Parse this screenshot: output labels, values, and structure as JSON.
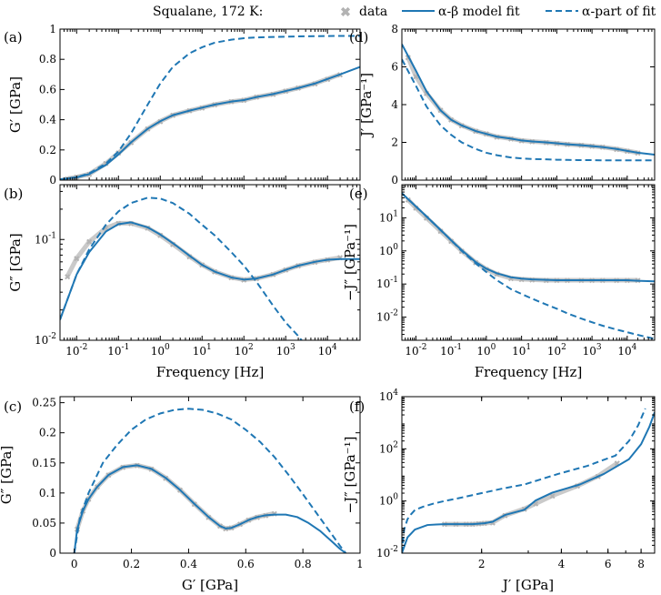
{
  "legend": {
    "title": "Squalane, 172 K:",
    "data_label": "data",
    "fit_label": "α-β model fit",
    "alpha_label": "α-part of fit"
  },
  "colors": {
    "fit": "#1f77b4",
    "data": "#b3b3b3",
    "axis": "#000000"
  },
  "chart_data": [
    {
      "panel": "(a)",
      "type": "line",
      "xlabel": "",
      "ylabel": "G′ [GPa]",
      "xscale": "log",
      "yscale": "linear",
      "xlim": [
        0.004,
        60000
      ],
      "ylim": [
        0,
        1
      ],
      "yticks": [
        0,
        0.2,
        0.4,
        0.6,
        0.8,
        1
      ],
      "yticklabels": [
        "0",
        "0.2",
        "0.4",
        "0.6",
        "0.8",
        "1"
      ],
      "xticks": [
        0.01,
        0.1,
        1,
        10,
        100,
        1000,
        10000
      ],
      "xticklabels": [],
      "series": [
        {
          "name": "data",
          "x": [
            0.006,
            0.01,
            0.02,
            0.05,
            0.1,
            0.2,
            0.5,
            1,
            2,
            5,
            10,
            20,
            50,
            100,
            200,
            500,
            1000,
            2000,
            5000,
            10000,
            20000
          ],
          "y": [
            0.01,
            0.02,
            0.04,
            0.11,
            0.18,
            0.25,
            0.34,
            0.39,
            0.43,
            0.46,
            0.48,
            0.5,
            0.52,
            0.53,
            0.55,
            0.57,
            0.59,
            0.61,
            0.64,
            0.67,
            0.7
          ]
        },
        {
          "name": "fit",
          "x": [
            0.004,
            0.01,
            0.02,
            0.05,
            0.1,
            0.2,
            0.5,
            1,
            2,
            5,
            10,
            20,
            50,
            100,
            200,
            500,
            1000,
            2000,
            5000,
            10000,
            20000,
            60000
          ],
          "y": [
            0.005,
            0.018,
            0.04,
            0.1,
            0.17,
            0.25,
            0.34,
            0.39,
            0.43,
            0.46,
            0.48,
            0.5,
            0.52,
            0.53,
            0.55,
            0.57,
            0.59,
            0.61,
            0.64,
            0.67,
            0.7,
            0.75
          ]
        },
        {
          "name": "alpha",
          "x": [
            0.004,
            0.01,
            0.02,
            0.05,
            0.1,
            0.2,
            0.5,
            1,
            2,
            5,
            10,
            20,
            50,
            100,
            200,
            500,
            1000,
            2000,
            5000,
            10000,
            20000,
            60000
          ],
          "y": [
            0.005,
            0.02,
            0.045,
            0.11,
            0.19,
            0.31,
            0.5,
            0.64,
            0.75,
            0.84,
            0.88,
            0.91,
            0.93,
            0.94,
            0.945,
            0.948,
            0.95,
            0.952,
            0.953,
            0.954,
            0.955,
            0.955
          ]
        }
      ]
    },
    {
      "panel": "(b)",
      "type": "line",
      "xlabel": "Frequency [Hz]",
      "ylabel": "G″ [GPa]",
      "xscale": "log",
      "yscale": "log",
      "xlim": [
        0.004,
        60000
      ],
      "ylim": [
        0.01,
        0.35
      ],
      "yticks": [
        0.01,
        0.1
      ],
      "yticklabels": [
        "10^-2",
        "10^-1"
      ],
      "xticks": [
        0.01,
        0.1,
        1,
        10,
        100,
        1000,
        10000
      ],
      "xticklabels": [
        "10^-2",
        "10^-1",
        "10^0",
        "10^1",
        "10^2",
        "10^3",
        "10^4"
      ],
      "series": [
        {
          "name": "data",
          "x": [
            0.006,
            0.01,
            0.02,
            0.05,
            0.1,
            0.2,
            0.5,
            1,
            2,
            5,
            10,
            20,
            50,
            100,
            200,
            500,
            1000,
            2000,
            5000,
            10000,
            20000
          ],
          "y": [
            0.043,
            0.065,
            0.095,
            0.13,
            0.145,
            0.145,
            0.13,
            0.11,
            0.09,
            0.068,
            0.056,
            0.048,
            0.042,
            0.04,
            0.041,
            0.045,
            0.05,
            0.055,
            0.06,
            0.063,
            0.066
          ]
        },
        {
          "name": "fit",
          "x": [
            0.004,
            0.01,
            0.02,
            0.05,
            0.1,
            0.2,
            0.5,
            1,
            2,
            5,
            10,
            20,
            50,
            100,
            200,
            500,
            1000,
            2000,
            5000,
            10000,
            20000,
            60000
          ],
          "y": [
            0.016,
            0.045,
            0.075,
            0.12,
            0.142,
            0.148,
            0.132,
            0.112,
            0.092,
            0.069,
            0.056,
            0.048,
            0.042,
            0.04,
            0.041,
            0.045,
            0.05,
            0.055,
            0.06,
            0.063,
            0.064,
            0.064
          ]
        },
        {
          "name": "alpha",
          "x": [
            0.004,
            0.01,
            0.02,
            0.05,
            0.1,
            0.2,
            0.5,
            1,
            2,
            5,
            10,
            20,
            50,
            100,
            200,
            500,
            1000,
            2000,
            5000
          ],
          "y": [
            0.016,
            0.045,
            0.08,
            0.14,
            0.19,
            0.23,
            0.26,
            0.255,
            0.23,
            0.18,
            0.14,
            0.11,
            0.075,
            0.055,
            0.038,
            0.022,
            0.015,
            0.011,
            0.0068
          ]
        }
      ]
    },
    {
      "panel": "(c)",
      "type": "line",
      "xlabel": "G′ [GPa]",
      "ylabel": "G″ [GPa]",
      "xscale": "linear",
      "yscale": "linear",
      "xlim": [
        -0.05,
        1
      ],
      "ylim": [
        0,
        0.26
      ],
      "xticks": [
        0,
        0.2,
        0.4,
        0.6,
        0.8,
        1
      ],
      "xticklabels": [
        "0",
        "0.2",
        "0.4",
        "0.6",
        "0.8",
        "1"
      ],
      "yticks": [
        0,
        0.05,
        0.1,
        0.15,
        0.2,
        0.25
      ],
      "yticklabels": [
        "0",
        "0.05",
        "0.1",
        "0.15",
        "0.2",
        "0.25"
      ],
      "series": [
        {
          "name": "data",
          "x": [
            0.01,
            0.03,
            0.05,
            0.08,
            0.12,
            0.17,
            0.22,
            0.27,
            0.32,
            0.37,
            0.42,
            0.47,
            0.51,
            0.53,
            0.55,
            0.58,
            0.61,
            0.64,
            0.67,
            0.7
          ],
          "y": [
            0.04,
            0.07,
            0.09,
            0.11,
            0.13,
            0.143,
            0.146,
            0.14,
            0.125,
            0.105,
            0.082,
            0.06,
            0.045,
            0.041,
            0.042,
            0.048,
            0.055,
            0.06,
            0.063,
            0.066
          ]
        },
        {
          "name": "fit",
          "x": [
            0.0,
            0.01,
            0.03,
            0.05,
            0.08,
            0.12,
            0.17,
            0.22,
            0.27,
            0.32,
            0.37,
            0.42,
            0.47,
            0.51,
            0.53,
            0.55,
            0.58,
            0.61,
            0.64,
            0.67,
            0.7,
            0.74,
            0.78,
            0.82,
            0.86,
            0.9,
            0.93,
            0.95
          ],
          "y": [
            0.0,
            0.04,
            0.07,
            0.09,
            0.11,
            0.13,
            0.143,
            0.146,
            0.14,
            0.125,
            0.105,
            0.082,
            0.06,
            0.045,
            0.041,
            0.042,
            0.048,
            0.055,
            0.06,
            0.063,
            0.064,
            0.064,
            0.06,
            0.05,
            0.037,
            0.02,
            0.007,
            0.0
          ]
        },
        {
          "name": "alpha",
          "x": [
            0.0,
            0.02,
            0.05,
            0.1,
            0.15,
            0.2,
            0.25,
            0.3,
            0.35,
            0.4,
            0.45,
            0.5,
            0.55,
            0.6,
            0.65,
            0.7,
            0.75,
            0.8,
            0.85,
            0.9,
            0.93,
            0.95
          ],
          "y": [
            0.0,
            0.06,
            0.1,
            0.15,
            0.18,
            0.205,
            0.222,
            0.232,
            0.238,
            0.24,
            0.238,
            0.232,
            0.222,
            0.205,
            0.185,
            0.16,
            0.13,
            0.098,
            0.065,
            0.032,
            0.012,
            0.0
          ]
        }
      ]
    },
    {
      "panel": "(d)",
      "type": "line",
      "xlabel": "",
      "ylabel": "J′ [GPa⁻¹]",
      "xscale": "log",
      "yscale": "linear",
      "xlim": [
        0.004,
        60000
      ],
      "ylim": [
        0,
        8
      ],
      "yticks": [
        0,
        2,
        4,
        6,
        8
      ],
      "yticklabels": [
        "0",
        "2",
        "4",
        "6",
        "8"
      ],
      "xticks": [
        0.01,
        0.1,
        1,
        10,
        100,
        1000,
        10000
      ],
      "xticklabels": [],
      "series": [
        {
          "name": "data",
          "x": [
            0.006,
            0.01,
            0.02,
            0.05,
            0.1,
            0.2,
            0.5,
            1,
            2,
            5,
            10,
            20,
            50,
            100,
            200,
            500,
            1000,
            2000,
            5000,
            10000,
            20000
          ],
          "y": [
            6.5,
            5.5,
            4.6,
            3.7,
            3.2,
            2.9,
            2.6,
            2.45,
            2.3,
            2.2,
            2.1,
            2.05,
            2.0,
            1.95,
            1.9,
            1.85,
            1.8,
            1.75,
            1.65,
            1.55,
            1.45
          ]
        },
        {
          "name": "fit",
          "x": [
            0.004,
            0.01,
            0.02,
            0.05,
            0.1,
            0.2,
            0.5,
            1,
            2,
            5,
            10,
            20,
            50,
            100,
            200,
            500,
            1000,
            2000,
            5000,
            10000,
            20000,
            60000
          ],
          "y": [
            7.2,
            5.8,
            4.7,
            3.7,
            3.2,
            2.9,
            2.6,
            2.45,
            2.3,
            2.2,
            2.1,
            2.05,
            2.0,
            1.95,
            1.9,
            1.85,
            1.8,
            1.75,
            1.65,
            1.55,
            1.45,
            1.35
          ]
        },
        {
          "name": "alpha",
          "x": [
            0.004,
            0.01,
            0.02,
            0.05,
            0.1,
            0.2,
            0.5,
            1,
            2,
            5,
            10,
            20,
            50,
            100,
            200,
            500,
            1000,
            2000,
            5000,
            10000,
            20000,
            60000
          ],
          "y": [
            6.4,
            5.0,
            3.9,
            2.9,
            2.4,
            2.0,
            1.65,
            1.45,
            1.32,
            1.2,
            1.15,
            1.12,
            1.1,
            1.08,
            1.07,
            1.06,
            1.06,
            1.05,
            1.05,
            1.05,
            1.05,
            1.05
          ]
        }
      ]
    },
    {
      "panel": "(e)",
      "type": "line",
      "xlabel": "Frequency [Hz]",
      "ylabel": "−J″ [GPa⁻¹]",
      "xscale": "log",
      "yscale": "log",
      "xlim": [
        0.004,
        60000
      ],
      "ylim": [
        0.002,
        100
      ],
      "yticks": [
        0.01,
        0.1,
        1,
        10
      ],
      "yticklabels": [
        "10^-2",
        "10^-1",
        "10^0",
        "10^1"
      ],
      "xticks": [
        0.01,
        0.1,
        1,
        10,
        100,
        1000,
        10000
      ],
      "xticklabels": [
        "10^-2",
        "10^-1",
        "10^0",
        "10^1",
        "10^2",
        "10^3",
        "10^4"
      ],
      "series": [
        {
          "name": "data",
          "x": [
            0.006,
            0.01,
            0.02,
            0.05,
            0.1,
            0.2,
            0.5,
            1,
            2,
            5,
            10,
            20,
            50,
            100,
            200,
            500,
            1000,
            2000,
            5000,
            10000,
            20000
          ],
          "y": [
            35,
            20,
            10,
            4,
            2,
            1,
            0.45,
            0.28,
            0.2,
            0.15,
            0.14,
            0.135,
            0.13,
            0.13,
            0.13,
            0.13,
            0.13,
            0.13,
            0.13,
            0.13,
            0.13
          ]
        },
        {
          "name": "fit",
          "x": [
            0.004,
            0.01,
            0.02,
            0.05,
            0.1,
            0.2,
            0.5,
            1,
            2,
            5,
            10,
            20,
            50,
            100,
            200,
            500,
            1000,
            2000,
            5000,
            10000,
            20000,
            60000
          ],
          "y": [
            55,
            22,
            11,
            4.3,
            2.1,
            1.05,
            0.46,
            0.29,
            0.21,
            0.16,
            0.145,
            0.138,
            0.133,
            0.13,
            0.13,
            0.13,
            0.13,
            0.13,
            0.13,
            0.13,
            0.125,
            0.12
          ]
        },
        {
          "name": "alpha",
          "x": [
            0.004,
            0.01,
            0.02,
            0.05,
            0.1,
            0.2,
            0.5,
            1,
            2,
            5,
            10,
            20,
            50,
            100,
            200,
            500,
            1000,
            2000,
            5000,
            10000,
            20000,
            60000
          ],
          "y": [
            55,
            22,
            11,
            4.3,
            2.1,
            1.0,
            0.42,
            0.23,
            0.13,
            0.07,
            0.05,
            0.036,
            0.024,
            0.018,
            0.013,
            0.009,
            0.007,
            0.0055,
            0.0042,
            0.0035,
            0.0029,
            0.0022
          ]
        }
      ]
    },
    {
      "panel": "(f)",
      "type": "line",
      "xlabel": "J′ [GPa]",
      "ylabel": "−J″ [GPa⁻¹]",
      "xscale": "log",
      "yscale": "log",
      "xlim": [
        1,
        9
      ],
      "ylim": [
        0.01,
        10000
      ],
      "xticks": [
        2,
        4,
        6,
        8
      ],
      "xticklabels": [
        "2",
        "4",
        "6",
        "8"
      ],
      "yticks": [
        0.01,
        1,
        100,
        10000
      ],
      "yticklabels": [
        "10^-2",
        "10^0",
        "10^2",
        "10^4"
      ],
      "series": [
        {
          "name": "data",
          "x": [
            1.45,
            1.6,
            1.75,
            1.85,
            1.95,
            2.05,
            2.2,
            2.45,
            2.9,
            3.2,
            3.7,
            4.6,
            5.5,
            6.5
          ],
          "y": [
            0.13,
            0.13,
            0.13,
            0.13,
            0.135,
            0.14,
            0.15,
            0.28,
            0.5,
            0.8,
            1.6,
            3.8,
            9,
            28
          ]
        },
        {
          "name": "fit",
          "x": [
            1.0,
            1.05,
            1.12,
            1.25,
            1.35,
            1.45,
            1.55,
            1.65,
            1.75,
            1.85,
            1.95,
            2.05,
            2.2,
            2.45,
            2.9,
            3.2,
            3.7,
            4.7,
            5.8,
            7.2,
            8.0,
            8.6,
            9.0
          ],
          "y": [
            0.01,
            0.04,
            0.08,
            0.12,
            0.125,
            0.13,
            0.13,
            0.13,
            0.13,
            0.13,
            0.135,
            0.14,
            0.16,
            0.29,
            0.46,
            1.05,
            2.1,
            4.3,
            11,
            40,
            150,
            700,
            2500
          ]
        },
        {
          "name": "alpha",
          "x": [
            1.0,
            1.02,
            1.05,
            1.08,
            1.12,
            1.2,
            1.32,
            1.45,
            1.65,
            2.0,
            2.4,
            2.9,
            3.9,
            5.0,
            6.4,
            7.2,
            7.8,
            8.3
          ],
          "y": [
            0.01,
            0.08,
            0.2,
            0.3,
            0.45,
            0.6,
            0.8,
            1.0,
            1.3,
            2.0,
            3.0,
            4.3,
            11,
            22,
            55,
            200,
            800,
            3500
          ]
        }
      ]
    }
  ]
}
